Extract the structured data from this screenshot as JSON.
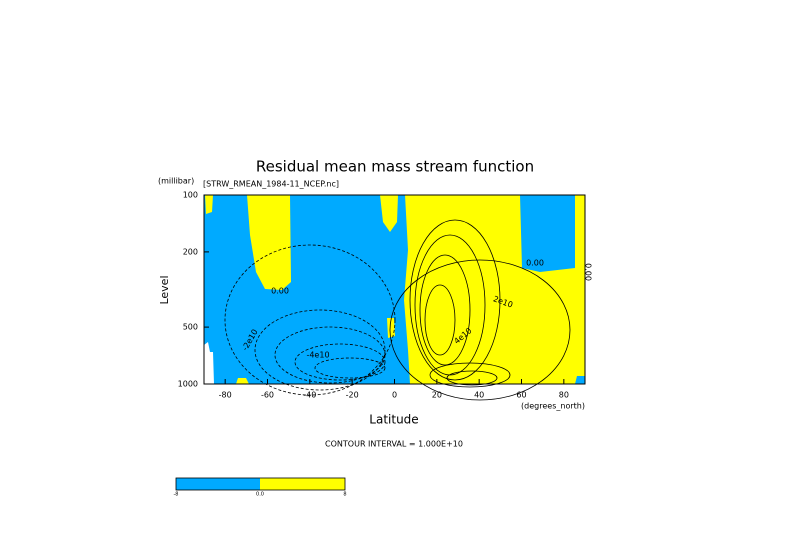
{
  "chart_data": {
    "type": "contour",
    "title": "Residual mean mass stream function",
    "subtitle": "[STRW_RMEAN_1984-11_NCEP.nc]",
    "xlabel": "Latitude",
    "xunits": "(degrees_north)",
    "ylabel": "Level",
    "yunits": "(millibar)",
    "xlim": [
      -90,
      90
    ],
    "xticks": [
      -80,
      -60,
      -40,
      -20,
      0,
      20,
      40,
      60,
      80
    ],
    "ylim": [
      1000,
      100
    ],
    "yticks": [
      100,
      200,
      500,
      1000
    ],
    "ylog": true,
    "contour_labels": [
      "0.00",
      "0.00",
      "0.00",
      "-2e10",
      "-4e10",
      "2e10",
      "4e10"
    ],
    "note": "CONTOUR INTERVAL = 1.000E+10",
    "negative_color": "#00aaff",
    "positive_color": "#ffff00",
    "colorbar_labels": [
      "-8",
      "0.0",
      "8"
    ]
  }
}
